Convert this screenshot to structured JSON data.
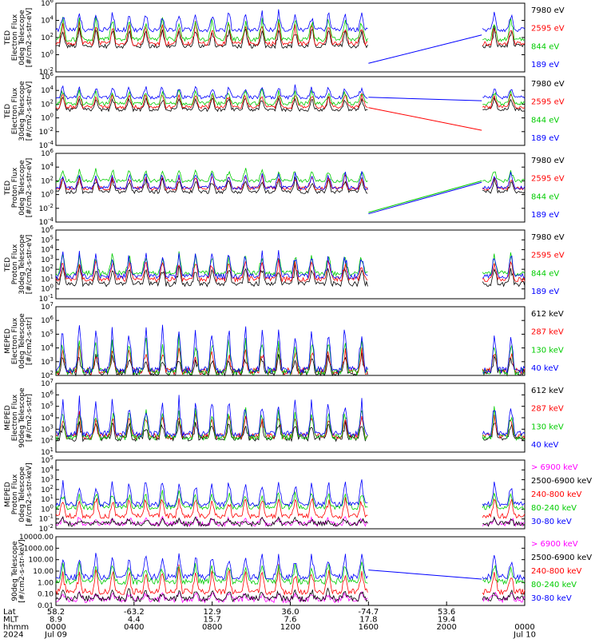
{
  "colors": {
    "black": "#000000",
    "red": "#ff0000",
    "green": "#00cc00",
    "blue": "#0000ff",
    "magenta": "#ff00ff"
  },
  "chart_data": [
    {
      "type": "line",
      "ylabel": [
        "TED",
        "Electron Flux",
        "0deg Telescope",
        "[#/cm2-s-str-eV]"
      ],
      "scale": "log",
      "ylim_exp": [
        -2,
        6
      ],
      "ytick_labels": [
        "10^6",
        "10^4",
        "10^2",
        "10^0",
        "10^-2"
      ],
      "series": [
        {
          "name": "7980 eV",
          "color": "black",
          "base_exp": 1.0,
          "spike_exp": 3.3
        },
        {
          "name": "2595 eV",
          "color": "red",
          "base_exp": 1.3,
          "spike_exp": 4.0
        },
        {
          "name": "844 eV",
          "color": "green",
          "base_exp": 1.8,
          "spike_exp": 4.6
        },
        {
          "name": "189 eV",
          "color": "blue",
          "base_exp": 2.9,
          "spike_exp": 5.2
        }
      ],
      "gap_line": {
        "color": "blue",
        "from_exp": -1.0,
        "to_exp": 2.3
      }
    },
    {
      "type": "line",
      "ylabel": [
        "TED",
        "Electron Flux",
        "30deg Telescope",
        "[#/cm2-s-str-eV]"
      ],
      "scale": "log",
      "ylim_exp": [
        -4,
        6
      ],
      "ytick_labels": [
        "10^6",
        "10^4",
        "10^2",
        "10^0",
        "10^-2",
        "10^-4"
      ],
      "series": [
        {
          "name": "7980 eV",
          "color": "black",
          "base_exp": 1.2,
          "spike_exp": 3.2
        },
        {
          "name": "2595 eV",
          "color": "red",
          "base_exp": 1.6,
          "spike_exp": 3.9
        },
        {
          "name": "844 eV",
          "color": "green",
          "base_exp": 2.1,
          "spike_exp": 4.4
        },
        {
          "name": "189 eV",
          "color": "blue",
          "base_exp": 3.0,
          "spike_exp": 4.8
        }
      ],
      "gap_line": {
        "color": "blue",
        "from_exp": 3.0,
        "to_exp": 2.5
      },
      "gap_line2": {
        "color": "red",
        "from_exp": 1.5,
        "to_exp": -1.8
      }
    },
    {
      "type": "line",
      "ylabel": [
        "TED",
        "Proton Flux",
        "0deg Telescope",
        "[#/cm2-s-str-eV]"
      ],
      "scale": "log",
      "ylim_exp": [
        -4,
        6
      ],
      "ytick_labels": [
        "10^6",
        "10^4",
        "10^2",
        "10^0",
        "10^-2",
        "10^-4"
      ],
      "series": [
        {
          "name": "7980 eV",
          "color": "black",
          "base_exp": 0.4,
          "spike_exp": 2.6
        },
        {
          "name": "2595 eV",
          "color": "red",
          "base_exp": 0.9,
          "spike_exp": 3.0
        },
        {
          "name": "844 eV",
          "color": "green",
          "base_exp": 2.0,
          "spike_exp": 4.0
        },
        {
          "name": "189 eV",
          "color": "blue",
          "base_exp": 1.0,
          "spike_exp": 3.5
        }
      ],
      "gap_line": {
        "color": "green",
        "from_exp": -2.6,
        "to_exp": 2.0
      },
      "gap_line2": {
        "color": "blue",
        "from_exp": -2.8,
        "to_exp": 1.8
      }
    },
    {
      "type": "line",
      "ylabel": [
        "TED",
        "Proton Flux",
        "30deg Telescope",
        "[#/cm2-s-str-eV]"
      ],
      "scale": "log",
      "ylim_exp": [
        -1,
        6
      ],
      "ytick_labels": [
        "10^6",
        "10^5",
        "10^4",
        "10^3",
        "10^2",
        "10^1",
        "10^0",
        "10^-1"
      ],
      "series": [
        {
          "name": "7980 eV",
          "color": "black",
          "base_exp": 0.5,
          "spike_exp": 2.5
        },
        {
          "name": "2595 eV",
          "color": "red",
          "base_exp": 1.0,
          "spike_exp": 3.2
        },
        {
          "name": "844 eV",
          "color": "green",
          "base_exp": 1.6,
          "spike_exp": 3.8
        },
        {
          "name": "189 eV",
          "color": "blue",
          "base_exp": 1.3,
          "spike_exp": 4.0
        }
      ]
    },
    {
      "type": "line",
      "ylabel": [
        "MEPED",
        "Electron Flux",
        "0deg Telescope",
        "[#/cm2-s-str]"
      ],
      "scale": "log",
      "ylim_exp": [
        2,
        7
      ],
      "ytick_labels": [
        "10^7",
        "10^6",
        "10^5",
        "10^4",
        "10^3",
        "10^2"
      ],
      "series": [
        {
          "name": "612 keV",
          "color": "black",
          "base_exp": 2.2,
          "spike_exp": 3.6
        },
        {
          "name": "287 keV",
          "color": "red",
          "base_exp": 2.3,
          "spike_exp": 4.2
        },
        {
          "name": "130 keV",
          "color": "green",
          "base_exp": 2.3,
          "spike_exp": 5.0
        },
        {
          "name": "40 keV",
          "color": "blue",
          "base_exp": 2.4,
          "spike_exp": 6.0
        }
      ]
    },
    {
      "type": "line",
      "ylabel": [
        "MEPED",
        "Electron Flux",
        "90deg Telescope",
        "[#/cm2-s-str]"
      ],
      "scale": "log",
      "ylim_exp": [
        1,
        7
      ],
      "ytick_labels": [
        "10^7",
        "10^6",
        "10^5",
        "10^4",
        "10^3",
        "10^2",
        "10^1"
      ],
      "series": [
        {
          "name": "612 keV",
          "color": "black",
          "base_exp": 2.2,
          "spike_exp": 3.8
        },
        {
          "name": "287 keV",
          "color": "red",
          "base_exp": 2.4,
          "spike_exp": 4.5
        },
        {
          "name": "130 keV",
          "color": "green",
          "base_exp": 2.3,
          "spike_exp": 5.2
        },
        {
          "name": "40 keV",
          "color": "blue",
          "base_exp": 2.6,
          "spike_exp": 6.0
        }
      ]
    },
    {
      "type": "line",
      "ylabel": [
        "MEPED",
        "Proton Flux",
        "0deg Telescope",
        "[#/cm2-s-str-keV]"
      ],
      "scale": "log",
      "ylim_exp": [
        -2,
        5
      ],
      "ytick_labels": [
        "10^5",
        "10^4",
        "10^3",
        "10^2",
        "10^1",
        "10^0",
        "10^-1",
        "10^-2"
      ],
      "series": [
        {
          "name": "> 6900 keV",
          "color": "magenta",
          "base_exp": -1.5,
          "spike_exp": -0.8
        },
        {
          "name": "2500-6900 keV",
          "color": "black",
          "base_exp": -1.5,
          "spike_exp": -0.9
        },
        {
          "name": "240-800 keV",
          "color": "red",
          "base_exp": -0.7,
          "spike_exp": 1.5
        },
        {
          "name": "80-240 keV",
          "color": "green",
          "base_exp": 0.2,
          "spike_exp": 1.9
        },
        {
          "name": "30-80 keV",
          "color": "blue",
          "base_exp": 0.5,
          "spike_exp": 3.2
        }
      ]
    },
    {
      "type": "line",
      "ylabel": [
        "90deg Telescope",
        "[#/cm2-s-str-keV]"
      ],
      "scale": "log",
      "ylim_exp": [
        -2,
        4
      ],
      "ytick_labels": [
        "10000.00",
        "1000.00",
        "100.00",
        "10.00",
        "1.00",
        "0.10",
        "0.01"
      ],
      "series": [
        {
          "name": "> 6900 keV",
          "color": "magenta",
          "base_exp": -1.5,
          "spike_exp": -0.8
        },
        {
          "name": "2500-6900 keV",
          "color": "black",
          "base_exp": -1.4,
          "spike_exp": -0.6
        },
        {
          "name": "240-800 keV",
          "color": "red",
          "base_exp": -0.8,
          "spike_exp": 1.4
        },
        {
          "name": "80-240 keV",
          "color": "green",
          "base_exp": 0.1,
          "spike_exp": 1.8
        },
        {
          "name": "30-80 keV",
          "color": "blue",
          "base_exp": 0.5,
          "spike_exp": 2.7
        }
      ],
      "gap_line": {
        "color": "blue",
        "from_exp": 1.1,
        "to_exp": 0.3
      }
    }
  ],
  "xaxis": {
    "row_labels": [
      "Lat",
      "MLT",
      "hhmm",
      "2024"
    ],
    "ticks": [
      {
        "lat": "58.2",
        "mlt": "8.9",
        "hhmm": "0000",
        "date": "Jul 09"
      },
      {
        "lat": "-63.2",
        "mlt": "4.4",
        "hhmm": "0400",
        "date": ""
      },
      {
        "lat": "12.9",
        "mlt": "15.7",
        "hhmm": "0800",
        "date": ""
      },
      {
        "lat": "36.0",
        "mlt": "7.6",
        "hhmm": "1200",
        "date": ""
      },
      {
        "lat": "-74.7",
        "mlt": "17.8",
        "hhmm": "1600",
        "date": ""
      },
      {
        "lat": "53.6",
        "mlt": "19.4",
        "hhmm": "2000",
        "date": ""
      },
      {
        "lat": "",
        "mlt": "",
        "hhmm": "0000",
        "date": "Jul 10"
      }
    ],
    "data_gap_hours": [
      16.0,
      21.8
    ]
  }
}
